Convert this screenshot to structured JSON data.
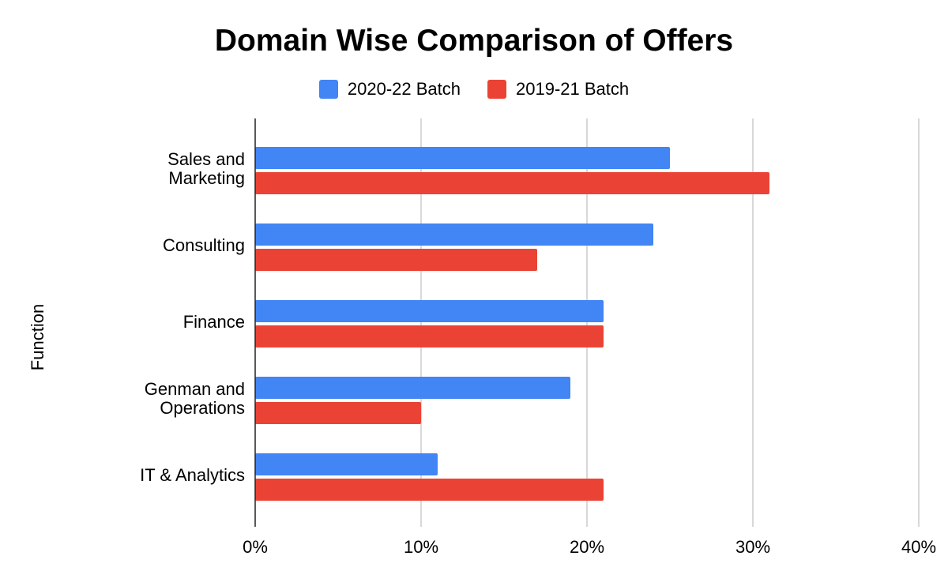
{
  "chart_data": {
    "type": "bar",
    "orientation": "horizontal",
    "title": "Domain Wise Comparison of Offers",
    "ylabel": "Function",
    "xlabel": "",
    "categories": [
      [
        "Sales and",
        "Marketing"
      ],
      [
        "Consulting"
      ],
      [
        "Finance"
      ],
      [
        "Genman and",
        "Operations"
      ],
      [
        "IT & Analytics"
      ]
    ],
    "series": [
      {
        "name": "2020-22 Batch",
        "color": "#4285F4",
        "values": [
          25,
          24,
          21,
          19,
          11
        ]
      },
      {
        "name": "2019-21 Batch",
        "color": "#EA4335",
        "values": [
          31,
          17,
          21,
          10,
          21
        ]
      }
    ],
    "xlim": [
      0,
      40
    ],
    "xticks": [
      "0%",
      "10%",
      "20%",
      "30%",
      "40%"
    ],
    "grid": true,
    "legend_position": "top"
  }
}
